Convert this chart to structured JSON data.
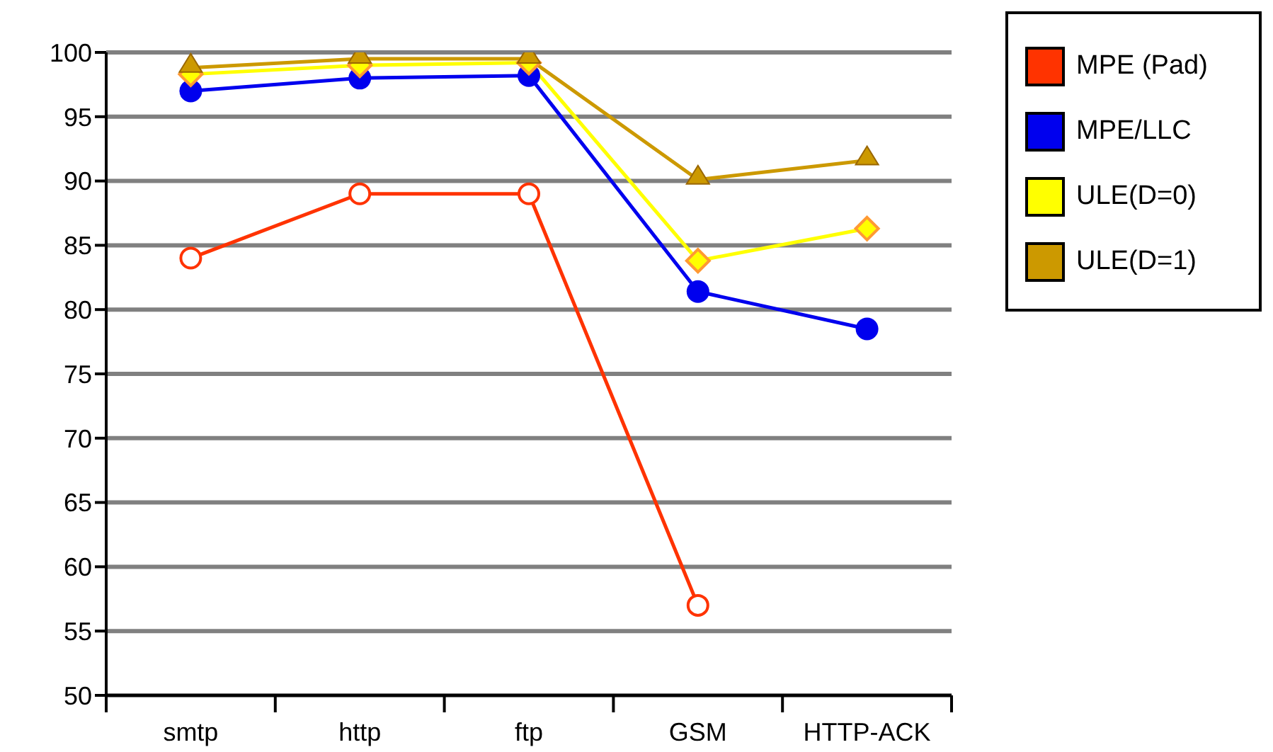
{
  "chart_data": {
    "type": "line",
    "categories": [
      "smtp",
      "http",
      "ftp",
      "GSM",
      "HTTP-ACK"
    ],
    "series": [
      {
        "name": "MPE (Pad)",
        "color": "#ff3300",
        "marker": "circle",
        "values": [
          84,
          89,
          89,
          57,
          null
        ]
      },
      {
        "name": "MPE/LLC",
        "color": "#0000ee",
        "marker": "circle",
        "values": [
          97,
          98,
          98.2,
          81.4,
          78.5
        ]
      },
      {
        "name": "ULE(D=0)",
        "color": "#ffff00",
        "marker": "diamond",
        "values": [
          98.3,
          99,
          99.2,
          83.8,
          86.3
        ]
      },
      {
        "name": "ULE(D=1)",
        "color": "#cc9900",
        "marker": "triangle",
        "values": [
          98.8,
          99.5,
          99.5,
          90.1,
          91.6
        ]
      }
    ],
    "ylim": [
      50,
      100
    ],
    "yticks": [
      50,
      55,
      60,
      65,
      70,
      75,
      80,
      85,
      90,
      95,
      100
    ],
    "grid": "y",
    "legend": "top right"
  }
}
